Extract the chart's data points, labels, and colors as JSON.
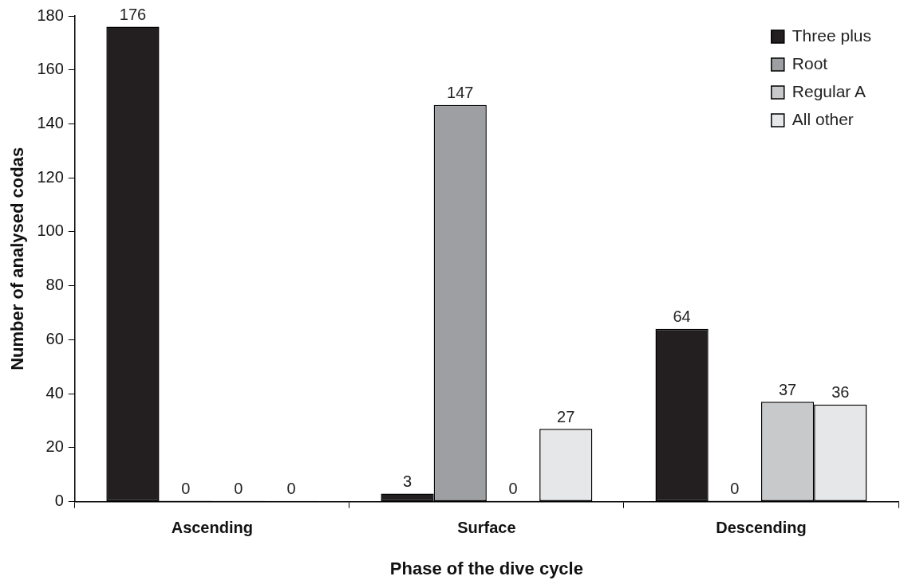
{
  "chart_data": {
    "type": "bar",
    "xlabel": "Phase of the dive cycle",
    "ylabel": "Number of analysed codas",
    "categories": [
      "Ascending",
      "Surface",
      "Descending"
    ],
    "series": [
      {
        "name": "Three plus",
        "color": "#231f20",
        "values": [
          176,
          3,
          64
        ]
      },
      {
        "name": "Root",
        "color": "#9d9fa2",
        "values": [
          0,
          147,
          0
        ]
      },
      {
        "name": "Regular A",
        "color": "#c8c9cb",
        "values": [
          0,
          0,
          37
        ]
      },
      {
        "name": "All other",
        "color": "#e6e7e8",
        "values": [
          0,
          27,
          36
        ]
      }
    ],
    "ylim": [
      0,
      180
    ],
    "yticks": [
      0,
      20,
      40,
      60,
      80,
      100,
      120,
      140,
      160,
      180
    ],
    "grid": false,
    "legend": "top right",
    "data_labels": true
  }
}
